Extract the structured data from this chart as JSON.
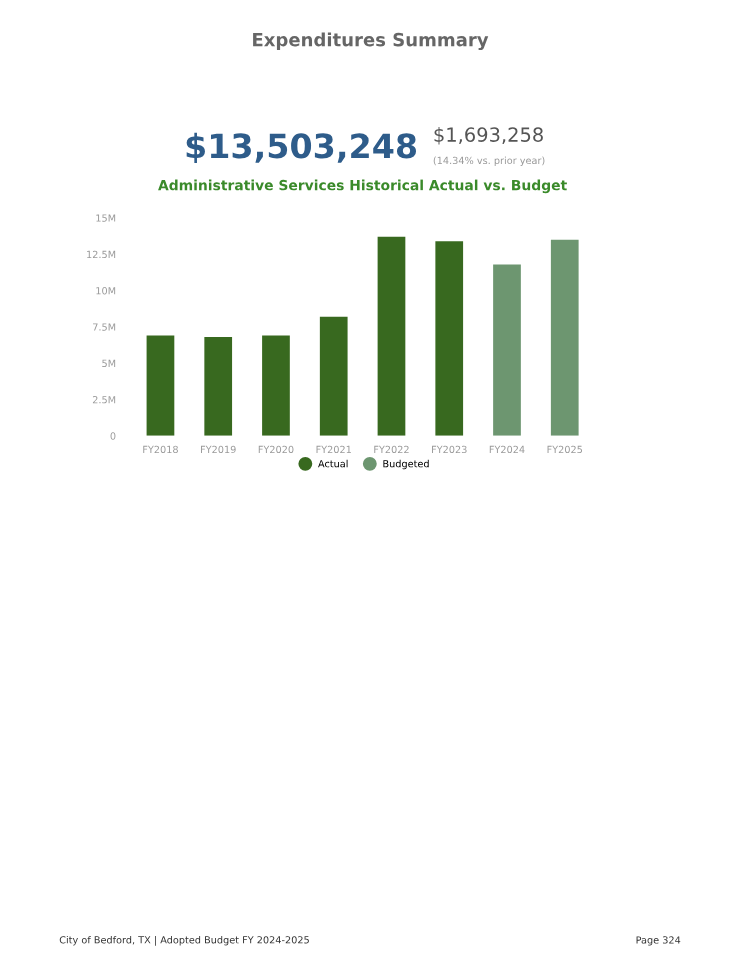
{
  "chart_data": {
    "type": "bar",
    "title": "Administrative Services Historical Actual vs. Budget",
    "categories": [
      "FY2018",
      "FY2019",
      "FY2020",
      "FY2021",
      "FY2022",
      "FY2023",
      "FY2024",
      "FY2025"
    ],
    "series": [
      {
        "name": "Actual",
        "color": "#38691f",
        "values": [
          6.9,
          6.8,
          6.9,
          8.2,
          13.7,
          13.4,
          null,
          null
        ]
      },
      {
        "name": "Budgeted",
        "color": "#6d9670",
        "values": [
          null,
          null,
          null,
          null,
          null,
          null,
          11.8,
          13.5
        ]
      }
    ],
    "ylim": [
      0,
      15
    ],
    "yticks": [
      0,
      {
        "value": 2.5,
        "label": "2.5M"
      },
      {
        "value": 5,
        "label": "5M"
      },
      {
        "value": 7.5,
        "label": "7.5M"
      },
      {
        "value": 10,
        "label": "10M"
      },
      {
        "value": 12.5,
        "label": "12.5M"
      },
      {
        "value": 15,
        "label": "15M"
      }
    ],
    "grid": false,
    "legend": "bottom",
    "annotations": [
      "Expenditures Summary",
      "$13,503,248",
      "$1,693,258",
      "(14.34% vs. prior year)",
      "City of Bedford, TX | Adopted Budget FY 2024-2025",
      "Page 324"
    ]
  }
}
